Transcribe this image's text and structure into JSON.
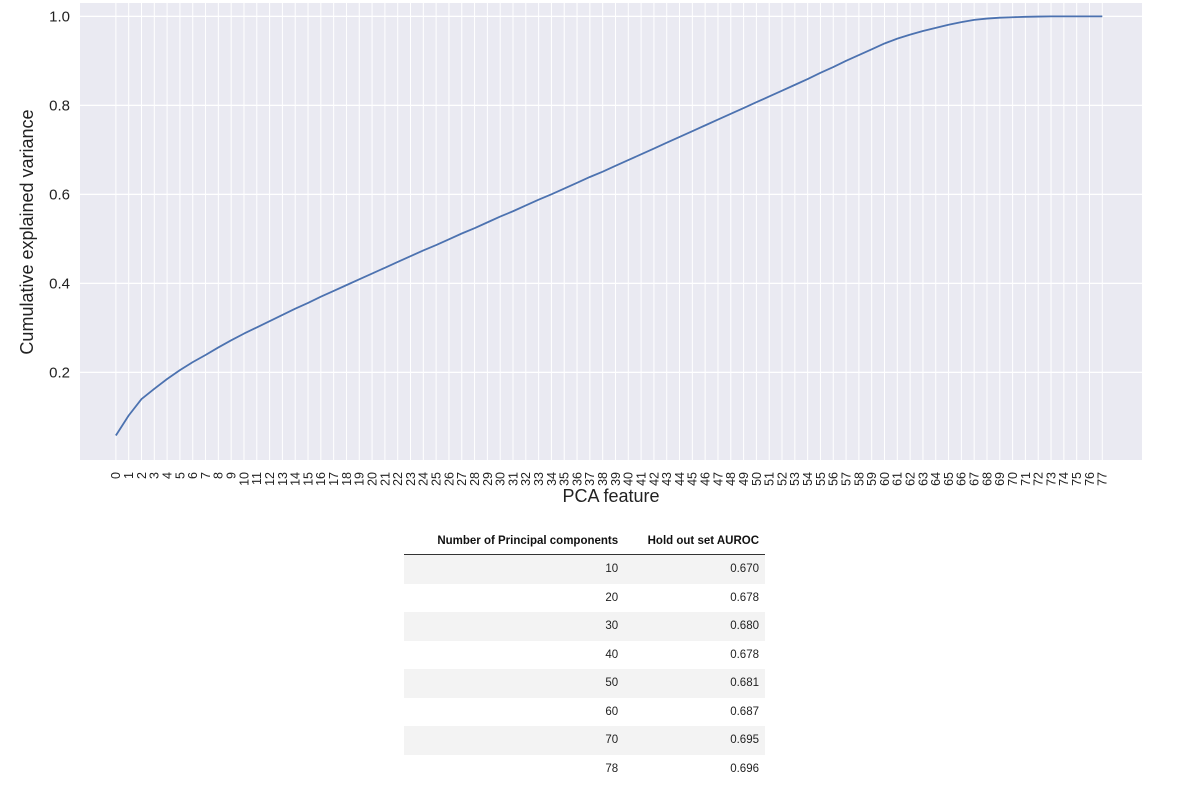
{
  "chart_data": {
    "type": "line",
    "xlabel": "PCA feature",
    "ylabel": "Cumulative explained variance",
    "x_tick_labels": [
      "0",
      "1",
      "2",
      "3",
      "4",
      "5",
      "6",
      "7",
      "8",
      "9",
      "10",
      "11",
      "12",
      "13",
      "14",
      "15",
      "16",
      "17",
      "18",
      "19",
      "20",
      "21",
      "22",
      "23",
      "24",
      "25",
      "26",
      "27",
      "28",
      "29",
      "30",
      "31",
      "32",
      "33",
      "34",
      "35",
      "36",
      "37",
      "38",
      "39",
      "40",
      "41",
      "42",
      "43",
      "44",
      "45",
      "46",
      "47",
      "48",
      "49",
      "50",
      "51",
      "52",
      "53",
      "54",
      "55",
      "56",
      "57",
      "58",
      "59",
      "60",
      "61",
      "62",
      "63",
      "64",
      "65",
      "66",
      "67",
      "68",
      "69",
      "70",
      "71",
      "72",
      "73",
      "74",
      "75",
      "76",
      "77"
    ],
    "y_ticks": [
      0.2,
      0.4,
      0.6,
      0.8,
      1.0
    ],
    "y_tick_labels": [
      "0.2",
      "0.4",
      "0.6",
      "0.8",
      "1.0"
    ],
    "xlim": [
      -2.8,
      80.1
    ],
    "ylim": [
      0.003,
      1.03
    ],
    "grid": true,
    "line_color": "#4c72b0",
    "background_color": "#eaeaf2",
    "series": [
      {
        "x": [
          0,
          1,
          2,
          3,
          4,
          5,
          6,
          7,
          8,
          9,
          10,
          11,
          12,
          13,
          14,
          15,
          16,
          17,
          18,
          19,
          20,
          21,
          22,
          23,
          24,
          25,
          26,
          27,
          28,
          29,
          30,
          31,
          32,
          33,
          34,
          35,
          36,
          37,
          38,
          39,
          40,
          41,
          42,
          43,
          44,
          45,
          46,
          47,
          48,
          49,
          50,
          51,
          52,
          53,
          54,
          55,
          56,
          57,
          58,
          59,
          60,
          61,
          62,
          63,
          64,
          65,
          66,
          67,
          68,
          69,
          70,
          71,
          72,
          73,
          74,
          75,
          76,
          77
        ],
        "y": [
          0.058,
          0.103,
          0.14,
          0.163,
          0.185,
          0.205,
          0.223,
          0.239,
          0.256,
          0.272,
          0.287,
          0.301,
          0.315,
          0.329,
          0.343,
          0.356,
          0.37,
          0.383,
          0.396,
          0.409,
          0.422,
          0.435,
          0.448,
          0.461,
          0.474,
          0.486,
          0.499,
          0.512,
          0.524,
          0.537,
          0.55,
          0.562,
          0.575,
          0.588,
          0.6,
          0.613,
          0.626,
          0.639,
          0.651,
          0.664,
          0.677,
          0.69,
          0.703,
          0.716,
          0.729,
          0.742,
          0.755,
          0.768,
          0.781,
          0.794,
          0.807,
          0.82,
          0.833,
          0.846,
          0.859,
          0.873,
          0.886,
          0.9,
          0.913,
          0.926,
          0.939,
          0.95,
          0.959,
          0.967,
          0.974,
          0.981,
          0.987,
          0.992,
          0.995,
          0.997,
          0.998,
          0.999,
          0.9995,
          1.0,
          1.0,
          1.0,
          1.0,
          1.0
        ]
      }
    ]
  },
  "table": {
    "headers": [
      "Number of Principal components",
      "Hold out set AUROC"
    ],
    "rows": [
      [
        "10",
        "0.670"
      ],
      [
        "20",
        "0.678"
      ],
      [
        "30",
        "0.680"
      ],
      [
        "40",
        "0.678"
      ],
      [
        "50",
        "0.681"
      ],
      [
        "60",
        "0.687"
      ],
      [
        "70",
        "0.695"
      ],
      [
        "78",
        "0.696"
      ]
    ]
  }
}
